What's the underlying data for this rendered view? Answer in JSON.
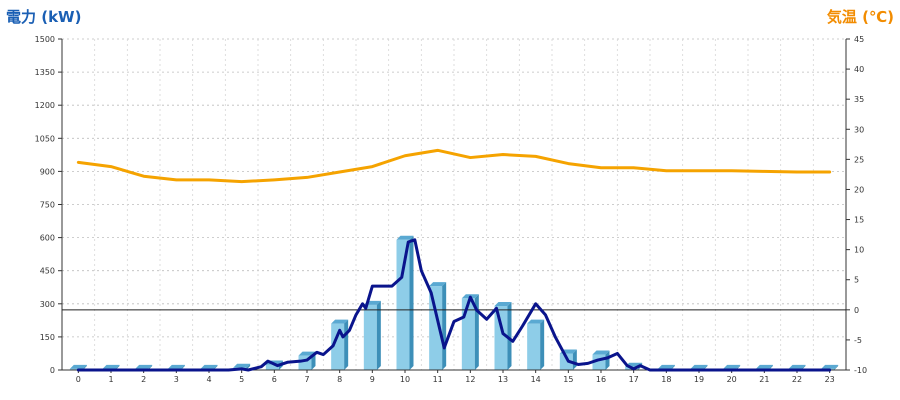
{
  "chart_data": {
    "type": "bar",
    "left_axis": {
      "title": "電力 (kW)",
      "min": 0,
      "max": 1500,
      "ticks": [
        0,
        150,
        300,
        450,
        600,
        750,
        900,
        1050,
        1200,
        1350,
        1500
      ],
      "color": "#1a5fb4"
    },
    "right_axis": {
      "title": "気温 (℃)",
      "min": -10,
      "max": 45,
      "ticks": [
        -10,
        -5,
        0,
        5,
        10,
        15,
        20,
        25,
        30,
        35,
        40,
        45
      ],
      "color": "#f28c00"
    },
    "categories": [
      "0",
      "1",
      "2",
      "3",
      "4",
      "5",
      "6",
      "7",
      "8",
      "9",
      "10",
      "11",
      "12",
      "13",
      "14",
      "15",
      "16",
      "17",
      "18",
      "19",
      "20",
      "21",
      "22",
      "23"
    ],
    "grid": true,
    "series": [
      {
        "type": "bar",
        "axis": "left",
        "color": "#8ecde8",
        "values": [
          5,
          5,
          5,
          5,
          5,
          10,
          25,
          65,
          210,
          295,
          590,
          380,
          325,
          290,
          210,
          75,
          70,
          15,
          5,
          5,
          5,
          5,
          5,
          5
        ]
      },
      {
        "type": "line",
        "axis": "left",
        "color": "#0a148c",
        "points": [
          [
            0,
            0
          ],
          [
            1,
            0
          ],
          [
            2,
            0
          ],
          [
            3,
            0
          ],
          [
            4,
            0
          ],
          [
            4.6,
            0
          ],
          [
            5,
            5
          ],
          [
            5.2,
            0
          ],
          [
            5.6,
            15
          ],
          [
            5.8,
            40
          ],
          [
            6.1,
            20
          ],
          [
            6.4,
            35
          ],
          [
            6.8,
            40
          ],
          [
            7,
            45
          ],
          [
            7.3,
            80
          ],
          [
            7.5,
            70
          ],
          [
            7.8,
            110
          ],
          [
            8,
            180
          ],
          [
            8.1,
            150
          ],
          [
            8.3,
            180
          ],
          [
            8.5,
            250
          ],
          [
            8.7,
            300
          ],
          [
            8.8,
            280
          ],
          [
            9,
            380
          ],
          [
            9.3,
            380
          ],
          [
            9.6,
            380
          ],
          [
            9.9,
            420
          ],
          [
            10.1,
            580
          ],
          [
            10.3,
            590
          ],
          [
            10.5,
            450
          ],
          [
            10.8,
            350
          ],
          [
            11.2,
            100
          ],
          [
            11.5,
            220
          ],
          [
            11.8,
            240
          ],
          [
            12,
            330
          ],
          [
            12.2,
            270
          ],
          [
            12.5,
            230
          ],
          [
            12.8,
            280
          ],
          [
            13,
            165
          ],
          [
            13.3,
            130
          ],
          [
            13.6,
            200
          ],
          [
            14,
            300
          ],
          [
            14.3,
            250
          ],
          [
            14.6,
            150
          ],
          [
            15,
            40
          ],
          [
            15.3,
            25
          ],
          [
            15.6,
            30
          ],
          [
            15.9,
            45
          ],
          [
            16.2,
            55
          ],
          [
            16.5,
            75
          ],
          [
            16.8,
            20
          ],
          [
            17,
            5
          ],
          [
            17.2,
            20
          ],
          [
            17.5,
            0
          ],
          [
            18,
            0
          ],
          [
            19,
            0
          ],
          [
            20,
            0
          ],
          [
            21,
            0
          ],
          [
            22,
            0
          ],
          [
            23,
            0
          ]
        ]
      },
      {
        "type": "line",
        "axis": "right",
        "color": "#f5a300",
        "values": [
          24.5,
          23.8,
          22.2,
          21.6,
          21.6,
          21.3,
          21.6,
          22.0,
          22.9,
          23.8,
          25.6,
          26.5,
          25.3,
          25.8,
          25.5,
          24.3,
          23.6,
          23.6,
          23.1,
          23.1,
          23.1,
          23.0,
          22.9,
          22.9
        ]
      }
    ]
  }
}
